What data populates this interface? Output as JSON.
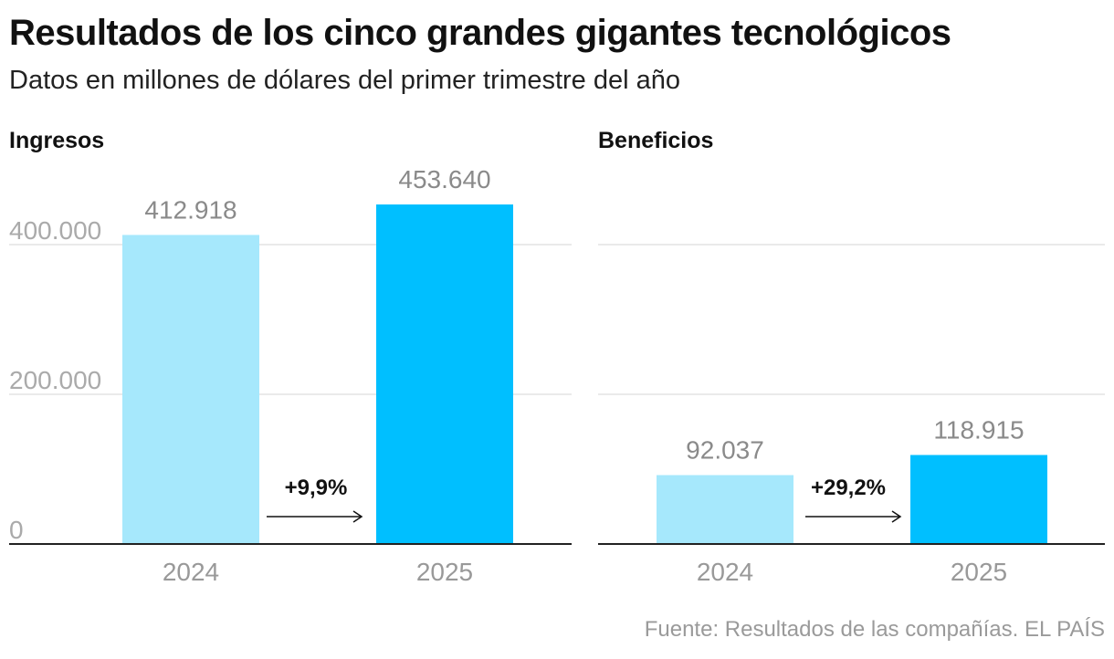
{
  "title": "Resultados de los cinco grandes gigantes tecnológicos",
  "subtitle": "Datos en millones de dólares del primer trimestre del año",
  "source": "Fuente: Resultados de las compañías. EL PAÍS",
  "colors": {
    "bar_2024": "#a6e8fc",
    "bar_2025": "#00bfff",
    "grid": "#e4e4e4",
    "axis": "#222222"
  },
  "chart_data": [
    {
      "type": "bar",
      "title": "Ingresos",
      "categories": [
        "2024",
        "2025"
      ],
      "values": [
        412918,
        453640
      ],
      "value_labels": [
        "412.918",
        "453.640"
      ],
      "change_label": "+9,9%",
      "ylim": [
        0,
        500000
      ],
      "yticks": [
        0,
        200000,
        400000
      ],
      "ytick_labels": [
        "0",
        "200.000",
        "400.000"
      ],
      "grid": true
    },
    {
      "type": "bar",
      "title": "Beneficios",
      "categories": [
        "2024",
        "2025"
      ],
      "values": [
        92037,
        118915
      ],
      "value_labels": [
        "92.037",
        "118.915"
      ],
      "change_label": "+29,2%",
      "ylim": [
        0,
        500000
      ],
      "yticks": [
        0,
        200000,
        400000
      ],
      "ytick_labels": [
        "",
        "",
        ""
      ],
      "grid": true
    }
  ]
}
